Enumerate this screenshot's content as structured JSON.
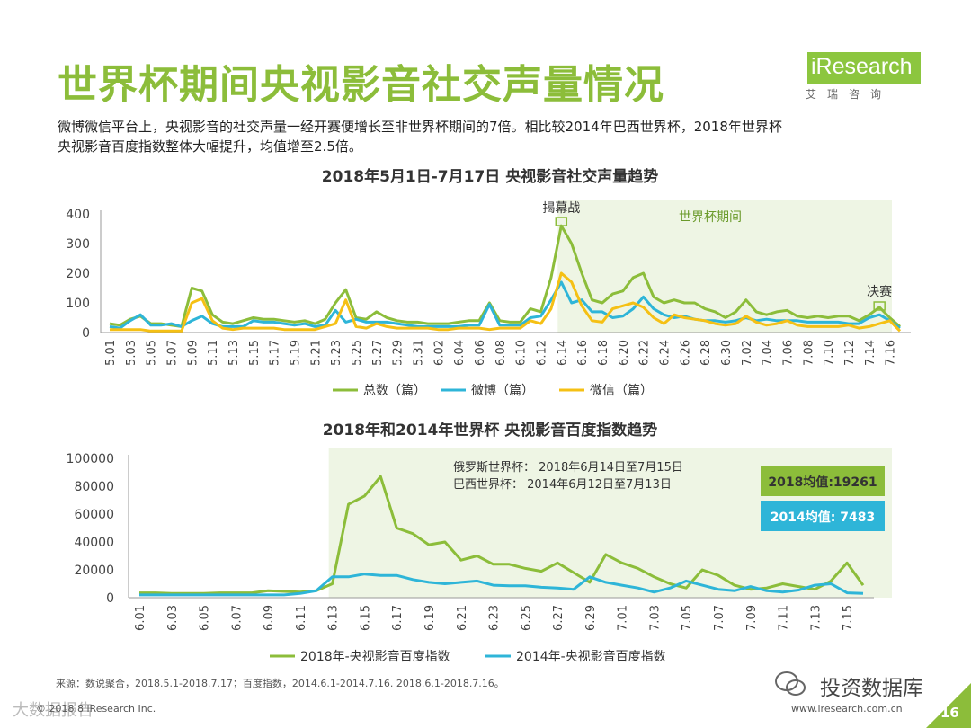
{
  "header": {
    "title": "世界杯期间央视影音社交声量情况",
    "subtitle_line1": "微博微信平台上，央视影音的社交声量一经开赛便增长至非世界杯期间的7倍。相比较2014年巴西世界杯，2018年世界杯",
    "subtitle_line2": "央视影音百度指数整体大幅提升，均值增至2.5倍。"
  },
  "logo": {
    "text": "iResearch",
    "sub": "艾瑞咨询"
  },
  "colors": {
    "green": "#8cbd3a",
    "blue": "#2eb5d8",
    "yellow": "#f5c014",
    "shade": "#eef5e4"
  },
  "chart_data": [
    {
      "type": "line",
      "title": "2018年5月1日-7月17日 央视影音社交声量趋势",
      "x": [
        "5.01",
        "5.02",
        "5.03",
        "5.04",
        "5.05",
        "5.06",
        "5.07",
        "5.08",
        "5.09",
        "5.10",
        "5.11",
        "5.12",
        "5.13",
        "5.14",
        "5.15",
        "5.16",
        "5.17",
        "5.18",
        "5.19",
        "5.20",
        "5.21",
        "5.22",
        "5.23",
        "5.24",
        "5.25",
        "5.26",
        "5.27",
        "5.28",
        "5.29",
        "5.30",
        "5.31",
        "6.01",
        "6.02",
        "6.03",
        "6.04",
        "6.05",
        "6.06",
        "6.07",
        "6.08",
        "6.09",
        "6.10",
        "6.11",
        "6.12",
        "6.13",
        "6.14",
        "6.15",
        "6.16",
        "6.17",
        "6.18",
        "6.19",
        "6.20",
        "6.21",
        "6.22",
        "6.23",
        "6.24",
        "6.25",
        "6.26",
        "6.27",
        "6.28",
        "6.29",
        "6.30",
        "7.01",
        "7.02",
        "7.03",
        "7.04",
        "7.05",
        "7.06",
        "7.07",
        "7.08",
        "7.09",
        "7.10",
        "7.11",
        "7.12",
        "7.13",
        "7.14",
        "7.15",
        "7.16",
        "7.17"
      ],
      "x_tick_labels": [
        "5.01",
        "5.03",
        "5.05",
        "5.07",
        "5.09",
        "5.11",
        "5.13",
        "5.15",
        "5.17",
        "5.19",
        "5.21",
        "5.23",
        "5.25",
        "5.27",
        "5.29",
        "5.31",
        "6.02",
        "6.04",
        "6.06",
        "6.08",
        "6.10",
        "6.12",
        "6.14",
        "6.16",
        "6.18",
        "6.20",
        "6.22",
        "6.24",
        "6.26",
        "6.28",
        "6.30",
        "7.02",
        "7.04",
        "7.06",
        "7.08",
        "7.10",
        "7.12",
        "7.14",
        "7.16"
      ],
      "series": [
        {
          "name": "总数（篇）",
          "color": "#8cbd3a",
          "values": [
            30,
            25,
            45,
            55,
            30,
            30,
            25,
            20,
            150,
            140,
            60,
            35,
            30,
            40,
            50,
            45,
            45,
            40,
            35,
            40,
            30,
            45,
            100,
            145,
            50,
            45,
            70,
            50,
            40,
            35,
            35,
            30,
            30,
            30,
            35,
            40,
            40,
            100,
            40,
            35,
            35,
            80,
            70,
            185,
            360,
            300,
            200,
            110,
            100,
            130,
            140,
            185,
            200,
            120,
            100,
            110,
            100,
            100,
            80,
            70,
            50,
            70,
            110,
            70,
            60,
            70,
            75,
            55,
            50,
            55,
            50,
            55,
            55,
            40,
            60,
            85,
            50,
            20
          ]
        },
        {
          "name": "微博（篇）",
          "color": "#2eb5d8",
          "values": [
            20,
            15,
            40,
            60,
            25,
            25,
            30,
            20,
            40,
            55,
            30,
            20,
            20,
            20,
            40,
            35,
            35,
            30,
            25,
            30,
            20,
            25,
            75,
            35,
            45,
            35,
            35,
            35,
            30,
            25,
            20,
            20,
            20,
            20,
            20,
            25,
            25,
            95,
            25,
            25,
            25,
            50,
            55,
            110,
            170,
            100,
            110,
            70,
            70,
            50,
            55,
            80,
            120,
            80,
            60,
            50,
            55,
            45,
            40,
            40,
            35,
            40,
            50,
            40,
            45,
            40,
            40,
            40,
            35,
            35,
            35,
            35,
            30,
            30,
            50,
            60,
            40,
            15
          ]
        },
        {
          "name": "微信（篇）",
          "color": "#f5c014",
          "values": [
            10,
            10,
            10,
            10,
            5,
            5,
            5,
            5,
            100,
            115,
            40,
            15,
            10,
            15,
            15,
            15,
            15,
            10,
            10,
            10,
            10,
            20,
            30,
            110,
            20,
            15,
            30,
            20,
            15,
            15,
            15,
            15,
            10,
            10,
            15,
            15,
            15,
            10,
            15,
            15,
            15,
            40,
            30,
            80,
            200,
            170,
            90,
            40,
            35,
            80,
            90,
            100,
            85,
            50,
            30,
            60,
            50,
            45,
            40,
            30,
            25,
            30,
            55,
            35,
            25,
            30,
            40,
            25,
            20,
            20,
            20,
            20,
            25,
            15,
            20,
            30,
            40,
            5
          ]
        }
      ],
      "ylim": [
        0,
        400
      ],
      "yticks": [
        "400",
        "300",
        "200",
        "100",
        "0"
      ],
      "annotations": {
        "opening": "揭幕战",
        "final": "决赛",
        "period": "世界杯期间"
      },
      "legend": "bottom"
    },
    {
      "type": "line",
      "title": "2018年和2014年世界杯 央视影音百度指数趋势",
      "x": [
        "6.01",
        "6.02",
        "6.03",
        "6.04",
        "6.05",
        "6.06",
        "6.07",
        "6.08",
        "6.09",
        "6.10",
        "6.11",
        "6.12",
        "6.13",
        "6.14",
        "6.15",
        "6.16",
        "6.17",
        "6.18",
        "6.19",
        "6.20",
        "6.21",
        "6.22",
        "6.23",
        "6.24",
        "6.25",
        "6.26",
        "6.27",
        "6.28",
        "6.29",
        "6.30",
        "7.01",
        "7.02",
        "7.03",
        "7.04",
        "7.05",
        "7.06",
        "7.07",
        "7.08",
        "7.09",
        "7.10",
        "7.11",
        "7.12",
        "7.13",
        "7.14",
        "7.15",
        "7.16"
      ],
      "x_tick_labels": [
        "6.01",
        "6.03",
        "6.05",
        "6.07",
        "6.09",
        "6.11",
        "6.13",
        "6.15",
        "6.17",
        "6.19",
        "6.21",
        "6.23",
        "6.25",
        "6.27",
        "6.29",
        "7.01",
        "7.03",
        "7.05",
        "7.07",
        "7.09",
        "7.11",
        "7.13",
        "7.15"
      ],
      "series": [
        {
          "name": "2018年-央视影音百度指数",
          "color": "#8cbd3a",
          "values": [
            3500,
            3500,
            3000,
            3000,
            3000,
            3500,
            3500,
            3500,
            5000,
            4500,
            4000,
            5000,
            10000,
            67000,
            73000,
            87000,
            50000,
            46000,
            38000,
            40000,
            27000,
            30000,
            24000,
            24000,
            21000,
            19000,
            25000,
            18000,
            11000,
            31000,
            25000,
            21000,
            15000,
            10000,
            7000,
            20000,
            16000,
            9000,
            6000,
            7000,
            10000,
            8000,
            6000,
            12000,
            25000,
            9000
          ]
        },
        {
          "name": "2014年-央视影音百度指数",
          "color": "#2eb5d8",
          "values": [
            2000,
            2000,
            2000,
            2000,
            2000,
            2000,
            2000,
            2000,
            2000,
            2000,
            3000,
            5000,
            15000,
            15000,
            17000,
            16000,
            16000,
            13000,
            11000,
            10000,
            11000,
            12000,
            9000,
            8500,
            8500,
            7500,
            7000,
            6000,
            15000,
            11000,
            9000,
            7000,
            4000,
            7000,
            12000,
            9000,
            6000,
            5000,
            8000,
            5000,
            4000,
            5500,
            9000,
            10000,
            3500,
            3000
          ]
        }
      ],
      "ylim": [
        0,
        100000
      ],
      "yticks": [
        "100000",
        "80000",
        "60000",
        "40000",
        "20000",
        "0"
      ],
      "notes": {
        "russia": "俄罗斯世界杯：  2018年6月14日至7月15日",
        "brazil": "巴西世界杯：     2014年6月12日至7月13日"
      },
      "badges": {
        "avg2018": "2018均值:19261",
        "avg2014": "2014均值: 7483"
      },
      "legend": "bottom"
    }
  ],
  "footer": {
    "source": "来源：数说聚合，2018.5.1-2018.7.17；百度指数，2014.6.1-2014.7.16. 2018.6.1-2018.7.16。",
    "copyright": "© 2018.8 iResearch Inc.",
    "url": "www.iresearch.com.cn",
    "page": "16",
    "watermark": "投资数据库",
    "watermark_left": "大数据报告"
  }
}
